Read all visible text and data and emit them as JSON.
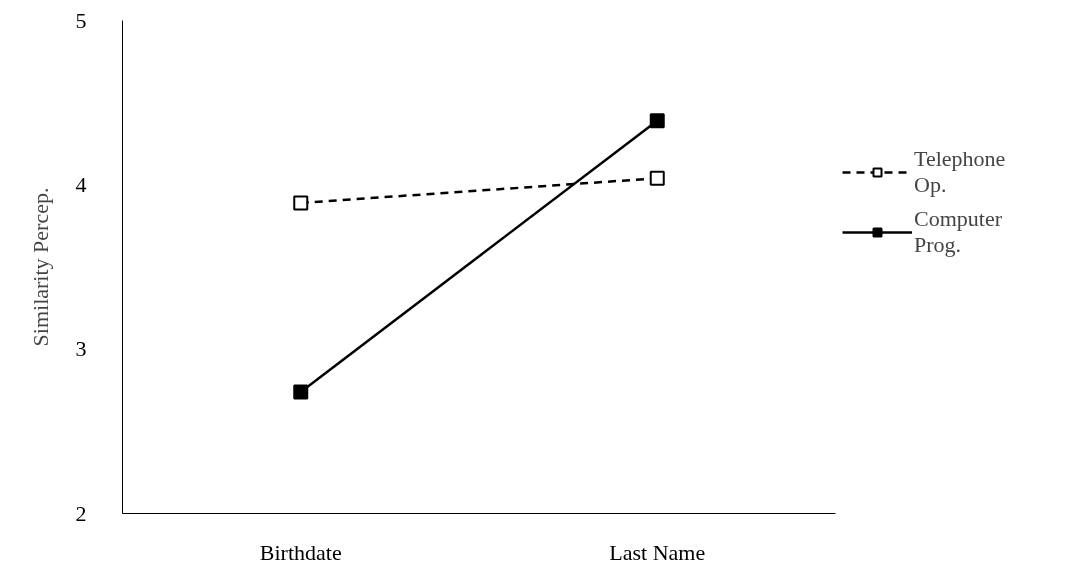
{
  "chart_data": {
    "type": "line",
    "ylabel": "Similarity Percep.",
    "categories": [
      "Birthdate",
      "Last Name"
    ],
    "ylim": [
      2,
      5
    ],
    "yticks": [
      2,
      3,
      4,
      5
    ],
    "grid": false,
    "legend": "right",
    "marker": "square",
    "series": [
      {
        "name": "Telephone Op.",
        "color": "#000000",
        "values": [
          3.89,
          4.04
        ],
        "line_style": "dashed"
      },
      {
        "name": "Computer Prog.",
        "color": "#000000",
        "values": [
          2.74,
          4.39
        ],
        "line_style": "solid"
      }
    ]
  }
}
